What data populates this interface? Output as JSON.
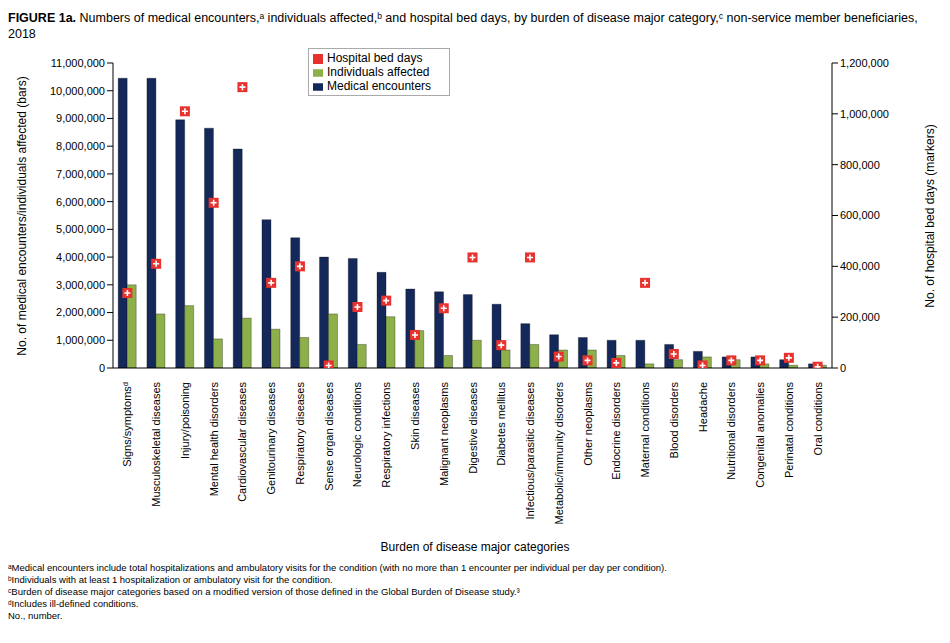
{
  "chart_data": {
    "type": "bar",
    "title": "FIGURE 1a. Numbers of medical encounters,ᵃ individuals affected,ᵇ and hospital bed days, by burden of disease major category,ᶜ non-service member beneficiaries, 2018",
    "x_label": "Burden of disease major categories",
    "y_label": "No. of medical encounters/individuals affected (bars)",
    "y2_label": "No. of hospital bed days (markers)",
    "categories": [
      "Signs/symptomsᵈ",
      "Musculoskeletal diseases",
      "Injury/poisoning",
      "Mental health disorders",
      "Cardiovascular diseases",
      "Genitourinary diseases",
      "Respiratory diseases",
      "Sense organ diseases",
      "Neurologic conditions",
      "Respiratory infections",
      "Skin diseases",
      "Malignant neoplasms",
      "Digestive diseases",
      "Diabetes mellitus",
      "Infectious/parasitic diseases",
      "Metabolic/immunity disorders",
      "Other neoplasms",
      "Endocrine disorders",
      "Maternal conditions",
      "Blood disorders",
      "Headache",
      "Nutritional disorders",
      "Congenital anomalies",
      "Perinatal conditions",
      "Oral conditions"
    ],
    "series": [
      {
        "name": "Medical encounters",
        "type": "bar",
        "color": "#14285a",
        "values": [
          10450000,
          10450000,
          8950000,
          8650000,
          7900000,
          5350000,
          4700000,
          4000000,
          3950000,
          3450000,
          2850000,
          2750000,
          2650000,
          2300000,
          1600000,
          1200000,
          1100000,
          1000000,
          1000000,
          850000,
          600000,
          400000,
          400000,
          300000,
          150000
        ]
      },
      {
        "name": "Individuals affected",
        "type": "bar",
        "color": "#8db04a",
        "values": [
          3000000,
          1950000,
          2250000,
          1050000,
          1800000,
          1400000,
          1100000,
          1950000,
          850000,
          1850000,
          1350000,
          450000,
          1000000,
          650000,
          850000,
          650000,
          650000,
          450000,
          150000,
          300000,
          400000,
          300000,
          150000,
          100000,
          100000
        ]
      },
      {
        "name": "Hospital bed days",
        "type": "scatter",
        "marker": "square",
        "axis": "y2",
        "color": "#e8322e",
        "values": [
          295000,
          410000,
          1010000,
          650000,
          1105000,
          335000,
          400000,
          10000,
          240000,
          265000,
          130000,
          235000,
          435000,
          90000,
          435000,
          45000,
          30000,
          20000,
          335000,
          55000,
          10000,
          30000,
          30000,
          40000,
          5000
        ]
      }
    ],
    "ylim": [
      0,
      11000000
    ],
    "yticks": [
      0,
      {
        "value": 1000000,
        "label": "1,000,000"
      },
      {
        "value": 2000000,
        "label": "2,000,000"
      },
      {
        "value": 3000000,
        "label": "3,000,000"
      },
      {
        "value": 4000000,
        "label": "4,000,000"
      },
      {
        "value": 5000000,
        "label": "5,000,000"
      },
      {
        "value": 6000000,
        "label": "6,000,000"
      },
      {
        "value": 7000000,
        "label": "7,000,000"
      },
      {
        "value": 8000000,
        "label": "8,000,000"
      },
      {
        "value": 9000000,
        "label": "9,000,000"
      },
      {
        "value": 10000000,
        "label": "10,000,000"
      },
      {
        "value": 11000000,
        "label": "11,000,000"
      }
    ],
    "y2lim": [
      0,
      1200000
    ],
    "y2ticks": [
      0,
      {
        "value": 200000,
        "label": "200,000"
      },
      {
        "value": 400000,
        "label": "400,000"
      },
      {
        "value": 600000,
        "label": "600,000"
      },
      {
        "value": 800000,
        "label": "800,000"
      },
      {
        "value": 1000000,
        "label": "1,000,000"
      },
      {
        "value": 1200000,
        "label": "1,200,000"
      }
    ],
    "grid": false,
    "legend": "top",
    "footnotes": [
      "ᵃMedical encounters include total hospitalizations and ambulatory visits for the condition (with no more than 1 encounter per individual per day per condition).",
      "ᵇIndividuals with at least 1 hospitalization or ambulatory visit for the condition.",
      "ᶜBurden of disease major categories based on a modified version of those defined in the Global Burden of Disease study.³",
      "ᵈIncludes ill-defined conditions.",
      "No., number."
    ]
  }
}
